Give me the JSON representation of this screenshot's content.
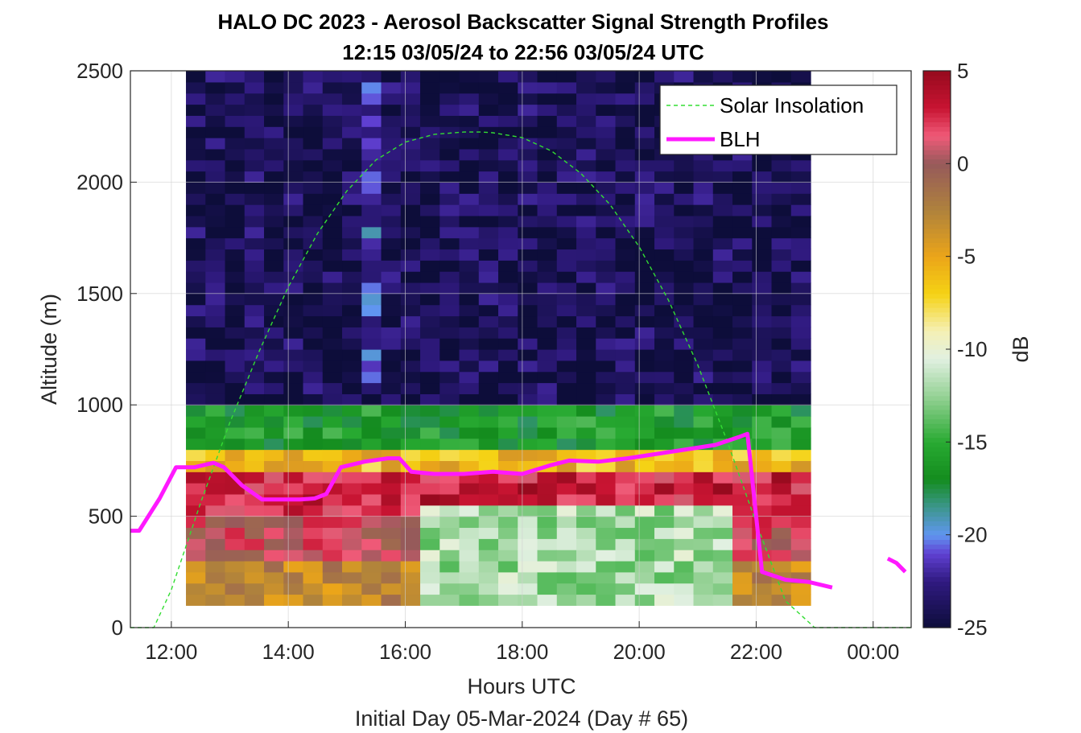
{
  "chart_data": {
    "type": "heatmap",
    "title": "HALO DC 2023 - Aerosol Backscatter Signal Strength Profiles",
    "subtitle": "12:15 03/05/24 to 22:56 03/05/24  UTC",
    "xlabel": "Hours UTC",
    "ylabel": "Altitude (m)",
    "footer": "Initial Day 05-Mar-2024 (Day # 65)",
    "x_unit": "hours UTC",
    "xlim": [
      11.3,
      24.65
    ],
    "ylim": [
      0,
      2500
    ],
    "grid": true,
    "x_ticks": [
      {
        "value": 12,
        "label": "12:00"
      },
      {
        "value": 14,
        "label": "14:00"
      },
      {
        "value": 16,
        "label": "16:00"
      },
      {
        "value": 18,
        "label": "18:00"
      },
      {
        "value": 20,
        "label": "20:00"
      },
      {
        "value": 22,
        "label": "22:00"
      },
      {
        "value": 24,
        "label": "00:00"
      }
    ],
    "y_ticks": [
      0,
      500,
      1000,
      1500,
      2000,
      2500
    ],
    "colorbar": {
      "label": "dB",
      "range": [
        -25,
        5
      ],
      "ticks": [
        5,
        0,
        -5,
        -10,
        -15,
        -20,
        -25
      ]
    },
    "heatmap": {
      "x_start": 12.25,
      "x_end": 22.93,
      "alt_bottom": 100,
      "alt_top": 2500,
      "bin_height_m": 50,
      "layers": [
        {
          "from": 100,
          "to": 300,
          "db": -3
        },
        {
          "from": 300,
          "to": 500,
          "db": 1
        },
        {
          "from": 500,
          "to": 700,
          "db": 3
        },
        {
          "from": 700,
          "to": 800,
          "db": -6
        },
        {
          "from": 800,
          "to": 1000,
          "db": -16
        },
        {
          "from": 1000,
          "to": 2500,
          "db": -24
        }
      ],
      "clear_columns": [
        {
          "from": 16.4,
          "to": 21.6,
          "alt_from": 100,
          "alt_to": 550,
          "db": -12
        }
      ],
      "plume": {
        "x": 15.45,
        "alt_from": 1100,
        "alt_to": 2450,
        "db": -21
      }
    },
    "series": [
      {
        "name": "Solar Insolation",
        "style": "dashed",
        "color": "#33dd33",
        "x": [
          11.3,
          11.7,
          12.0,
          12.5,
          13.0,
          13.5,
          14.0,
          14.5,
          15.0,
          15.5,
          16.0,
          16.5,
          17.0,
          17.3,
          17.5,
          18.0,
          18.5,
          19.0,
          19.5,
          20.0,
          20.5,
          21.0,
          21.5,
          22.0,
          22.5,
          23.0,
          23.5,
          24.0,
          24.65
        ],
        "y": [
          0,
          0,
          170,
          560,
          920,
          1240,
          1530,
          1770,
          1960,
          2100,
          2180,
          2215,
          2225,
          2225,
          2222,
          2200,
          2140,
          2040,
          1900,
          1710,
          1470,
          1180,
          840,
          470,
          120,
          0,
          0,
          0,
          0
        ]
      },
      {
        "name": "BLH",
        "style": "solid",
        "color": "#ff19ff",
        "x": [
          11.3,
          11.45,
          11.8,
          12.08,
          12.4,
          12.72,
          12.9,
          13.2,
          13.55,
          13.9,
          14.2,
          14.45,
          14.65,
          14.9,
          15.3,
          15.7,
          15.9,
          16.1,
          16.5,
          17.0,
          17.5,
          18.0,
          18.5,
          18.8,
          19.3,
          19.8,
          20.3,
          20.8,
          21.3,
          21.7,
          21.85,
          22.1,
          22.5,
          22.9,
          23.3
        ],
        "y": [
          435,
          435,
          580,
          720,
          720,
          740,
          720,
          640,
          575,
          575,
          575,
          580,
          600,
          720,
          745,
          760,
          760,
          700,
          690,
          690,
          700,
          690,
          730,
          750,
          745,
          760,
          780,
          800,
          820,
          855,
          870,
          250,
          215,
          205,
          180
        ]
      },
      {
        "name": "",
        "style": "solid",
        "color": "#ff19ff",
        "x": [
          24.25,
          24.4,
          24.55
        ],
        "y": [
          310,
          290,
          250
        ]
      }
    ],
    "legend": {
      "position": "top-right",
      "entries": [
        "Solar Insolation",
        "BLH"
      ]
    }
  }
}
